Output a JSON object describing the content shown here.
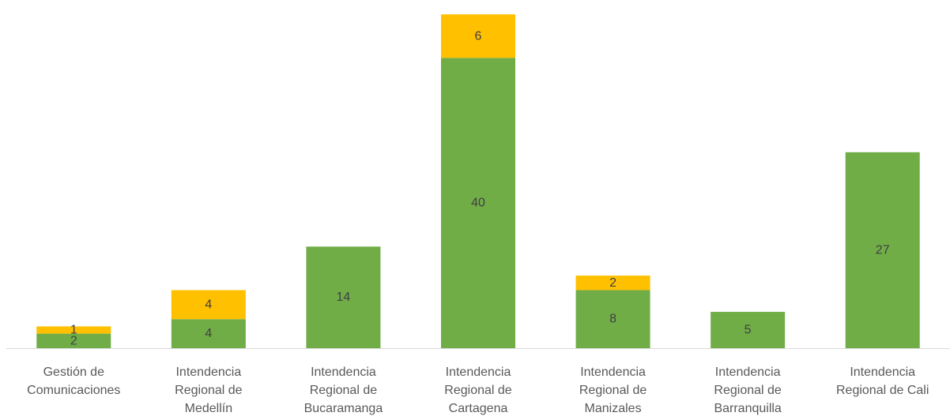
{
  "chart_data": {
    "type": "bar",
    "stacked": true,
    "title": "",
    "xlabel": "",
    "ylabel": "",
    "ylim": [
      0,
      47
    ],
    "grid": false,
    "legend": "none",
    "categories": [
      [
        "Gestión de",
        "Comunicaciones"
      ],
      [
        "Intendencia",
        "Regional de",
        "Medellín"
      ],
      [
        "Intendencia",
        "Regional de",
        "Bucaramanga"
      ],
      [
        "Intendencia",
        "Regional de",
        "Cartagena"
      ],
      [
        "Intendencia",
        "Regional de",
        "Manizales"
      ],
      [
        "Intendencia",
        "Regional de",
        "Barranquilla"
      ],
      [
        "Intendencia",
        "Regional de Cali"
      ]
    ],
    "series": [
      {
        "color": "#70AD47",
        "values": [
          2,
          4,
          14,
          40,
          8,
          5,
          27
        ],
        "labels": [
          "2",
          "4",
          "14",
          "40",
          "8",
          "5",
          "27"
        ]
      },
      {
        "color": "#FFC000",
        "values": [
          1,
          4,
          0,
          6,
          2,
          0,
          0
        ],
        "labels": [
          "1",
          "4",
          "",
          "6",
          "2",
          "",
          ""
        ]
      }
    ],
    "axis_color": "#D9D9D9"
  }
}
